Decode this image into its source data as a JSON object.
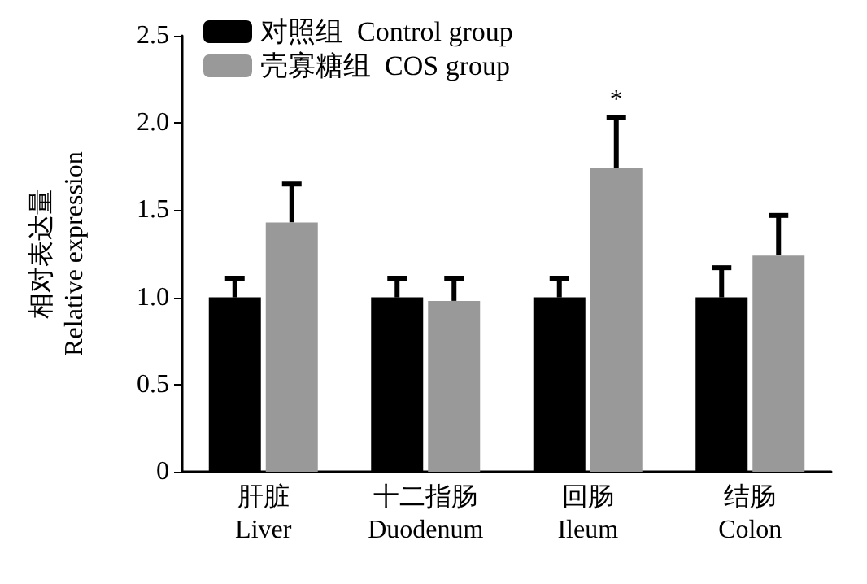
{
  "chart_data": {
    "type": "bar",
    "ylabel": "相对表达量\nRelative expression",
    "categories": [
      "肝脏\nLiver",
      "十二指肠\nDuodenum",
      "回肠\nIleum",
      "结肠\nColon"
    ],
    "series": [
      {
        "name": "对照组  Control group",
        "color": "#000000",
        "values": [
          1.0,
          1.0,
          1.0,
          1.0
        ],
        "errors": [
          [
            1.0,
            1.11
          ],
          [
            1.0,
            1.11
          ],
          [
            1.0,
            1.11
          ],
          [
            1.0,
            1.17
          ]
        ]
      },
      {
        "name": "壳寡糖组  COS group",
        "color": "#999999",
        "values": [
          1.43,
          0.98,
          1.74,
          1.24
        ],
        "errors": [
          [
            1.43,
            1.65
          ],
          [
            0.98,
            1.11
          ],
          [
            1.74,
            2.03
          ],
          [
            1.24,
            1.47
          ]
        ]
      }
    ],
    "ylim": [
      0,
      2.5
    ],
    "yticks": [
      0,
      0.5,
      {
        "value": 1,
        "label": "1.0"
      },
      1.5,
      {
        "value": 2,
        "label": "2.0"
      },
      2.5
    ],
    "grid": false,
    "legend": "top left",
    "annotations": [
      {
        "text": "*",
        "x": "回肠\nIleum",
        "y": 1.74
      }
    ]
  }
}
